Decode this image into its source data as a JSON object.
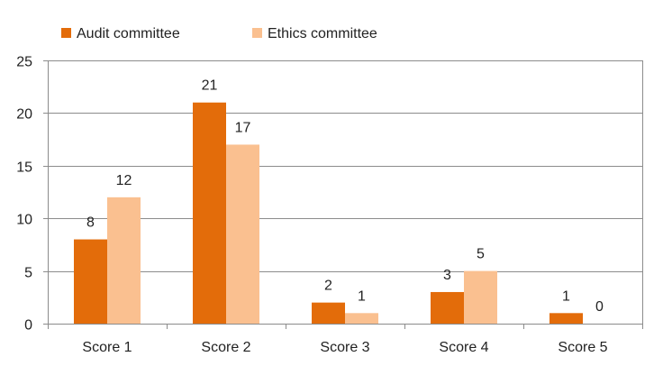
{
  "chart_data": {
    "type": "bar",
    "categories": [
      "Score 1",
      "Score 2",
      "Score 3",
      "Score 4",
      "Score 5"
    ],
    "series": [
      {
        "name": "Audit committee",
        "values": [
          8,
          21,
          2,
          3,
          1
        ],
        "color": "#E36C0A"
      },
      {
        "name": "Ethics committee",
        "values": [
          12,
          17,
          1,
          5,
          0
        ],
        "color": "#FAC090"
      }
    ],
    "title": "",
    "xlabel": "",
    "ylabel": "",
    "ylim": [
      0,
      25
    ],
    "yticks": [
      0,
      5,
      10,
      15,
      20,
      25
    ],
    "grid": true,
    "legend": "top-left",
    "data_labels": true
  }
}
